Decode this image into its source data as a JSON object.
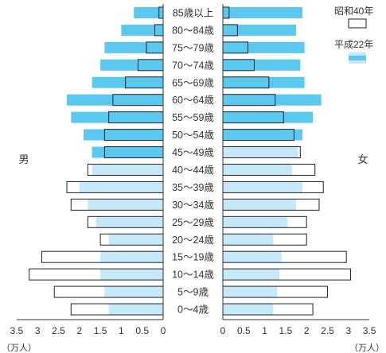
{
  "chart_data": {
    "type": "bar",
    "categories": [
      "85歳以上",
      "80～84歳",
      "75～79歳",
      "70～74歳",
      "65～69歳",
      "60～64歳",
      "55～59歳",
      "50～54歳",
      "45～49歳",
      "40～44歳",
      "35～39歳",
      "30～34歳",
      "25～29歳",
      "20～24歳",
      "15～19歳",
      "10～14歳",
      "5～9歳",
      "0～4歳"
    ],
    "male_label": "男",
    "female_label": "女",
    "unit_left": "（万人）",
    "unit_right": "（万人）",
    "xlim": [
      0,
      3.5
    ],
    "ticks": [
      3.5,
      3,
      2.5,
      2,
      1.5,
      1,
      0.5,
      0
    ],
    "tick_labels_left": [
      "3.5",
      "3",
      "2.5",
      "2",
      "1.5",
      "1",
      "0.5",
      "0"
    ],
    "tick_labels_right": [
      "0",
      "0.5",
      "1",
      "1.5",
      "2",
      "2.5",
      "3",
      "3.5"
    ],
    "legend": {
      "s1965_label": "昭和40年",
      "s2010_label": "平成22年",
      "placement": "top-right"
    },
    "series": [
      {
        "name": "昭和40年",
        "male": [
          0.1,
          0.2,
          0.4,
          0.6,
          0.9,
          1.2,
          1.3,
          1.4,
          1.4,
          1.8,
          2.3,
          2.2,
          1.8,
          1.5,
          2.9,
          3.2,
          2.6,
          2.2
        ],
        "female": [
          0.15,
          0.35,
          0.6,
          0.75,
          1.1,
          1.25,
          1.45,
          1.7,
          1.85,
          2.2,
          2.4,
          2.3,
          2.0,
          2.0,
          2.95,
          3.05,
          2.5,
          2.15
        ]
      },
      {
        "name": "平成22年",
        "male": [
          0.7,
          1.0,
          1.4,
          1.5,
          1.7,
          2.3,
          2.2,
          1.9,
          1.7,
          1.7,
          2.0,
          1.8,
          1.6,
          1.3,
          1.5,
          1.5,
          1.4,
          1.3
        ],
        "female": [
          1.9,
          1.75,
          1.95,
          1.85,
          1.95,
          2.35,
          2.15,
          1.9,
          1.8,
          1.65,
          1.9,
          1.75,
          1.55,
          1.2,
          1.4,
          1.35,
          1.3,
          1.2
        ]
      }
    ],
    "colors": {
      "light": "#c5e9f9",
      "dark": "#5bc8ef",
      "outline": "#222222",
      "text": "#333333"
    }
  }
}
